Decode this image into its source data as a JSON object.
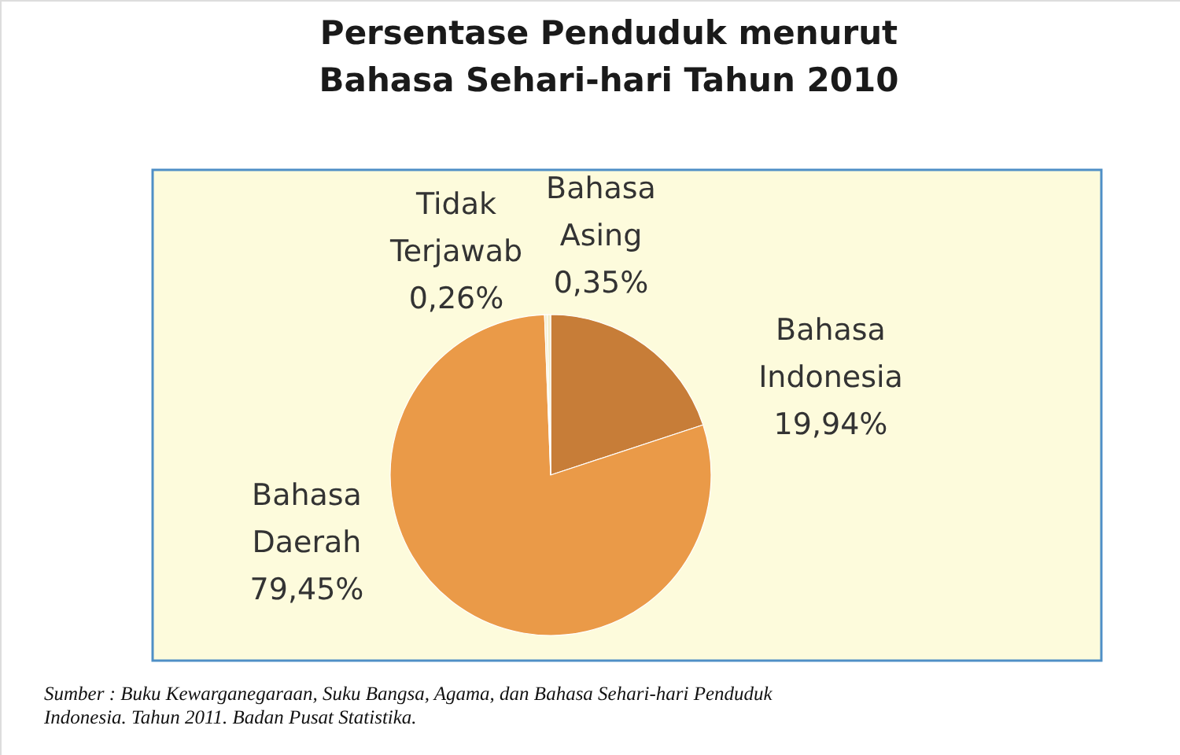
{
  "chart_data": {
    "type": "pie",
    "title": "Persentase Penduduk menurut Bahasa Sehari-hari Tahun 2010",
    "categories": [
      "Bahasa Indonesia",
      "Bahasa Daerah",
      "Tidak Terjawab",
      "Bahasa Asing"
    ],
    "values": [
      19.94,
      79.45,
      0.26,
      0.35
    ],
    "colors": [
      "#c77d38",
      "#ea9a48",
      "#f3eecb",
      "#f3eecb"
    ],
    "value_labels": [
      "19,94%",
      "79,45%",
      "0,26%",
      "0,35%"
    ],
    "annotations": [
      "Sumber : Buku Kewarganegaraan, Suku Bangsa, Agama, dan Bahasa Sehari-hari Penduduk Indonesia. Tahun 2011. Badan Pusat Statistika."
    ]
  }
}
